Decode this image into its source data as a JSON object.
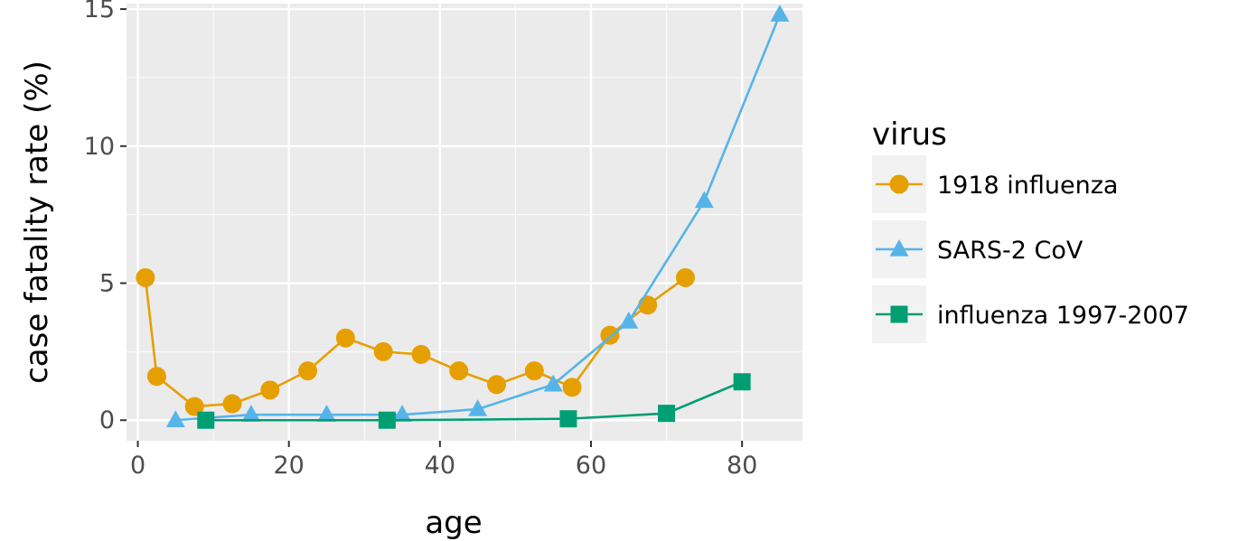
{
  "chart_data": {
    "type": "line",
    "xlabel": "age",
    "ylabel": "case fatality rate (%)",
    "xlim": [
      -1.5,
      88
    ],
    "ylim": [
      -0.75,
      15.2
    ],
    "x_ticks": [
      0,
      20,
      40,
      60,
      80
    ],
    "y_ticks": [
      0,
      5,
      10,
      15
    ],
    "grid": true,
    "legend": {
      "title": "virus",
      "placement": "right"
    },
    "series": [
      {
        "name": "1918 influenza",
        "color": "#E69F00",
        "marker": "circle",
        "x": [
          1,
          2.5,
          7.5,
          12.5,
          17.5,
          22.5,
          27.5,
          32.5,
          37.5,
          42.5,
          47.5,
          52.5,
          57.5,
          62.5,
          67.5,
          72.5
        ],
        "y": [
          5.2,
          1.6,
          0.5,
          0.6,
          1.1,
          1.8,
          3.0,
          2.5,
          2.4,
          1.8,
          1.3,
          1.8,
          1.2,
          3.1,
          4.2,
          5.2
        ]
      },
      {
        "name": "SARS-2 CoV",
        "color": "#56B4E9",
        "marker": "triangle",
        "x": [
          5,
          15,
          25,
          35,
          45,
          55,
          65,
          75,
          85
        ],
        "y": [
          0.0,
          0.2,
          0.2,
          0.2,
          0.4,
          1.3,
          3.6,
          8.0,
          14.8
        ]
      },
      {
        "name": "influenza 1997-2007",
        "color": "#009E73",
        "marker": "square",
        "x": [
          9,
          33,
          57,
          70,
          80
        ],
        "y": [
          0.0,
          0.0,
          0.05,
          0.25,
          1.4
        ]
      }
    ]
  }
}
